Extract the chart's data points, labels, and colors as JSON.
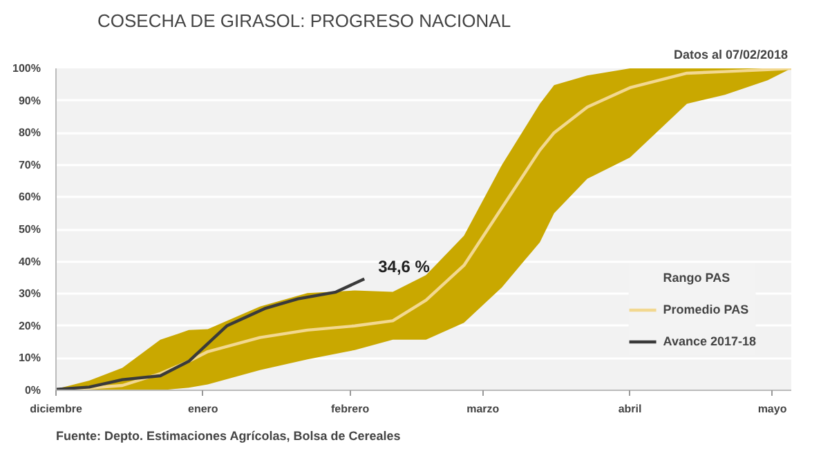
{
  "chart_data": {
    "type": "line",
    "title": "COSECHA DE GIRASOL: PROGRESO NACIONAL",
    "annotations": [
      "Datos  al 07/02/2018",
      "Fuente: Depto. Estimaciones Agrícolas,  Bolsa de Cereales",
      "Rango PAS",
      {
        "text": "34,6 %",
        "x": "2018-02-04",
        "y": 34.6
      }
    ],
    "xlim": [
      "2017-12-01",
      "2018-05-05"
    ],
    "ylim": [
      0,
      100
    ],
    "xticks": [
      {
        "value": "2017-12-01",
        "label": "diciembre"
      },
      {
        "value": "2018-01-01",
        "label": "enero"
      },
      {
        "value": "2018-02-01",
        "label": "febrero"
      },
      {
        "value": "2018-03-01",
        "label": "marzo"
      },
      {
        "value": "2018-04-01",
        "label": "abril"
      },
      {
        "value": "2018-05-01",
        "label": "mayo"
      }
    ],
    "yticks": [
      {
        "value": 0,
        "label": "0%"
      },
      {
        "value": 10,
        "label": "10%"
      },
      {
        "value": 20,
        "label": "20%"
      },
      {
        "value": 30,
        "label": "30%"
      },
      {
        "value": 40,
        "label": "40%"
      },
      {
        "value": 50,
        "label": "50%"
      },
      {
        "value": 60,
        "label": "60%"
      },
      {
        "value": 70,
        "label": "70%"
      },
      {
        "value": 80,
        "label": "80%"
      },
      {
        "value": 90,
        "label": "90%"
      },
      {
        "value": 100,
        "label": "100%"
      }
    ],
    "grid": "y",
    "legend": "bottom right",
    "series": [
      {
        "name": "Promedio PAS",
        "color": "#f2d890",
        "x": [
          "2017-12-01",
          "2017-12-08",
          "2017-12-15",
          "2017-12-23",
          "2017-12-29",
          "2018-01-02",
          "2018-01-13",
          "2018-01-23",
          "2018-02-02",
          "2018-02-10",
          "2018-02-17",
          "2018-02-25",
          "2018-03-05",
          "2018-03-13",
          "2018-03-16",
          "2018-03-23",
          "2018-04-01",
          "2018-04-13",
          "2018-04-21",
          "2018-04-30",
          "2018-05-05"
        ],
        "values": [
          0,
          0.7,
          1.5,
          5.2,
          9,
          12,
          16.4,
          18.7,
          20,
          21.6,
          28,
          38.8,
          56.7,
          74.6,
          80,
          88,
          94,
          98.5,
          99,
          99.6,
          100
        ],
        "lower": [
          0,
          0,
          0,
          0,
          0.8,
          1.8,
          6.3,
          9.6,
          12.5,
          15.7,
          15.7,
          21,
          32,
          46,
          55,
          65.7,
          72.3,
          89,
          91.8,
          96.3,
          100
        ],
        "upper": [
          0.4,
          3,
          7,
          15.7,
          18.7,
          19,
          26,
          30.2,
          31,
          30.6,
          35.8,
          48,
          70,
          89,
          94.8,
          97.8,
          100,
          100,
          100,
          100,
          100
        ]
      },
      {
        "name": "Avance 2017-18",
        "color": "#3a3a3a",
        "x": [
          "2017-12-01",
          "2017-12-08",
          "2017-12-15",
          "2017-12-23",
          "2017-12-29",
          "2018-01-06",
          "2018-01-14",
          "2018-01-21",
          "2018-01-29",
          "2018-02-04"
        ],
        "values": [
          0.3,
          1,
          3.3,
          4.5,
          9,
          20,
          25.4,
          28.4,
          30.5,
          34.6
        ]
      }
    ]
  }
}
